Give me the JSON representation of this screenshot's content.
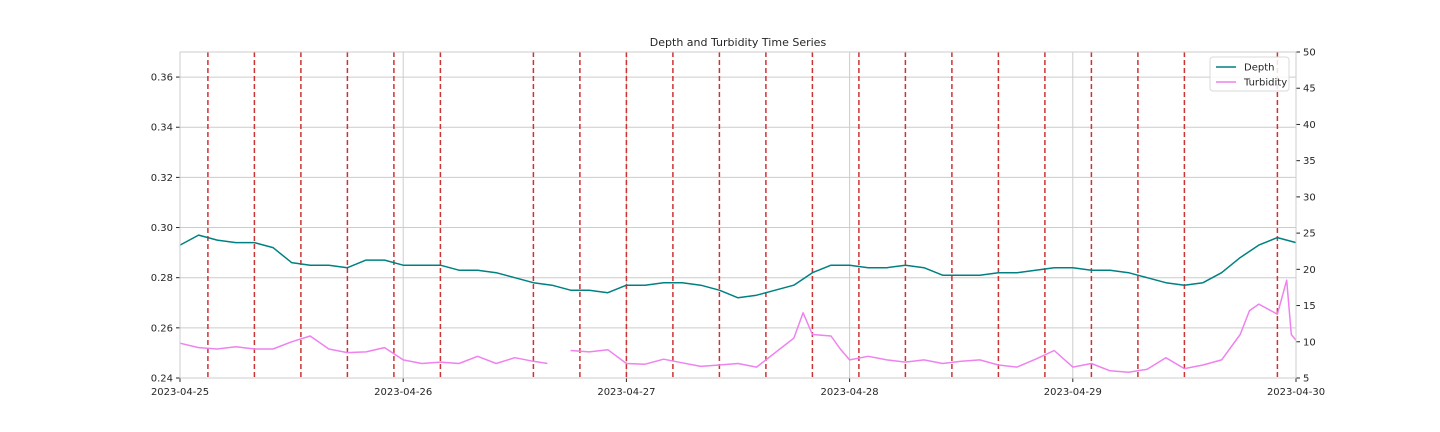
{
  "chart_data": {
    "type": "line",
    "title": "Depth and Turbidity Time Series",
    "xlabel": "",
    "ylabel_left": "",
    "ylabel_right": "",
    "x_range": [
      "2023-04-25",
      "2023-04-30"
    ],
    "x_ticks": [
      "2023-04-25",
      "2023-04-26",
      "2023-04-27",
      "2023-04-28",
      "2023-04-29",
      "2023-04-30"
    ],
    "ylim_left": [
      0.24,
      0.37
    ],
    "y_ticks_left": [
      "0.24",
      "0.26",
      "0.28",
      "0.30",
      "0.32",
      "0.34",
      "0.36"
    ],
    "ylim_right": [
      5,
      50
    ],
    "y_ticks_right": [
      "5",
      "10",
      "15",
      "20",
      "25",
      "30",
      "35",
      "40",
      "45",
      "50"
    ],
    "grid": true,
    "legend_position": "top-right",
    "series": [
      {
        "name": "Depth",
        "axis": "left",
        "color": "#008080",
        "points": [
          [
            "2023-04-25 00:00",
            0.293
          ],
          [
            "2023-04-25 02:00",
            0.297
          ],
          [
            "2023-04-25 04:00",
            0.295
          ],
          [
            "2023-04-25 06:00",
            0.294
          ],
          [
            "2023-04-25 08:00",
            0.294
          ],
          [
            "2023-04-25 10:00",
            0.292
          ],
          [
            "2023-04-25 12:00",
            0.286
          ],
          [
            "2023-04-25 14:00",
            0.285
          ],
          [
            "2023-04-25 16:00",
            0.285
          ],
          [
            "2023-04-25 18:00",
            0.284
          ],
          [
            "2023-04-25 20:00",
            0.287
          ],
          [
            "2023-04-25 22:00",
            0.287
          ],
          [
            "2023-04-26 00:00",
            0.285
          ],
          [
            "2023-04-26 02:00",
            0.285
          ],
          [
            "2023-04-26 04:00",
            0.285
          ],
          [
            "2023-04-26 06:00",
            0.283
          ],
          [
            "2023-04-26 08:00",
            0.283
          ],
          [
            "2023-04-26 10:00",
            0.282
          ],
          [
            "2023-04-26 12:00",
            0.28
          ],
          [
            "2023-04-26 14:00",
            0.278
          ],
          [
            "2023-04-26 16:00",
            0.277
          ],
          [
            "2023-04-26 18:00",
            0.275
          ],
          [
            "2023-04-26 20:00",
            0.275
          ],
          [
            "2023-04-26 22:00",
            0.274
          ],
          [
            "2023-04-27 00:00",
            0.277
          ],
          [
            "2023-04-27 02:00",
            0.277
          ],
          [
            "2023-04-27 04:00",
            0.278
          ],
          [
            "2023-04-27 06:00",
            0.278
          ],
          [
            "2023-04-27 08:00",
            0.277
          ],
          [
            "2023-04-27 10:00",
            0.275
          ],
          [
            "2023-04-27 12:00",
            0.272
          ],
          [
            "2023-04-27 14:00",
            0.273
          ],
          [
            "2023-04-27 16:00",
            0.275
          ],
          [
            "2023-04-27 18:00",
            0.277
          ],
          [
            "2023-04-27 20:00",
            0.282
          ],
          [
            "2023-04-27 22:00",
            0.285
          ],
          [
            "2023-04-28 00:00",
            0.285
          ],
          [
            "2023-04-28 02:00",
            0.284
          ],
          [
            "2023-04-28 04:00",
            0.284
          ],
          [
            "2023-04-28 06:00",
            0.285
          ],
          [
            "2023-04-28 08:00",
            0.284
          ],
          [
            "2023-04-28 10:00",
            0.281
          ],
          [
            "2023-04-28 12:00",
            0.281
          ],
          [
            "2023-04-28 14:00",
            0.281
          ],
          [
            "2023-04-28 16:00",
            0.282
          ],
          [
            "2023-04-28 18:00",
            0.282
          ],
          [
            "2023-04-28 20:00",
            0.283
          ],
          [
            "2023-04-28 22:00",
            0.284
          ],
          [
            "2023-04-29 00:00",
            0.284
          ],
          [
            "2023-04-29 02:00",
            0.283
          ],
          [
            "2023-04-29 04:00",
            0.283
          ],
          [
            "2023-04-29 06:00",
            0.282
          ],
          [
            "2023-04-29 08:00",
            0.28
          ],
          [
            "2023-04-29 10:00",
            0.278
          ],
          [
            "2023-04-29 12:00",
            0.277
          ],
          [
            "2023-04-29 14:00",
            0.278
          ],
          [
            "2023-04-29 16:00",
            0.282
          ],
          [
            "2023-04-29 18:00",
            0.288
          ],
          [
            "2023-04-29 20:00",
            0.293
          ],
          [
            "2023-04-29 22:00",
            0.296
          ],
          [
            "2023-04-30 00:00",
            0.294
          ]
        ]
      },
      {
        "name": "Turbidity",
        "axis": "right",
        "color": "#ee82ee",
        "points": [
          [
            "2023-04-25 00:00",
            9.8
          ],
          [
            "2023-04-25 02:00",
            9.2
          ],
          [
            "2023-04-25 04:00",
            9.0
          ],
          [
            "2023-04-25 06:00",
            9.3
          ],
          [
            "2023-04-25 08:00",
            9.0
          ],
          [
            "2023-04-25 10:00",
            9.0
          ],
          [
            "2023-04-25 12:00",
            10.0
          ],
          [
            "2023-04-25 14:00",
            10.8
          ],
          [
            "2023-04-25 16:00",
            9.0
          ],
          [
            "2023-04-25 18:00",
            8.5
          ],
          [
            "2023-04-25 20:00",
            8.6
          ],
          [
            "2023-04-25 22:00",
            9.2
          ],
          [
            "2023-04-26 00:00",
            7.5
          ],
          [
            "2023-04-26 02:00",
            7.0
          ],
          [
            "2023-04-26 04:00",
            7.2
          ],
          [
            "2023-04-26 06:00",
            7.0
          ],
          [
            "2023-04-26 08:00",
            8.0
          ],
          [
            "2023-04-26 10:00",
            7.0
          ],
          [
            "2023-04-26 12:00",
            7.8
          ],
          [
            "2023-04-26 14:00",
            7.3
          ],
          [
            "2023-04-26 15:30",
            7.0
          ],
          [
            "2023-04-26 16:00",
            null
          ],
          [
            "2023-04-26 18:00",
            8.8
          ],
          [
            "2023-04-26 20:00",
            8.6
          ],
          [
            "2023-04-26 22:00",
            8.9
          ],
          [
            "2023-04-27 00:00",
            7.0
          ],
          [
            "2023-04-27 02:00",
            6.9
          ],
          [
            "2023-04-27 04:00",
            7.6
          ],
          [
            "2023-04-27 06:00",
            7.1
          ],
          [
            "2023-04-27 08:00",
            6.6
          ],
          [
            "2023-04-27 10:00",
            6.8
          ],
          [
            "2023-04-27 12:00",
            7.0
          ],
          [
            "2023-04-27 14:00",
            6.5
          ],
          [
            "2023-04-27 16:00",
            8.5
          ],
          [
            "2023-04-27 18:00",
            10.5
          ],
          [
            "2023-04-27 19:00",
            14.0
          ],
          [
            "2023-04-27 20:00",
            11.0
          ],
          [
            "2023-04-27 22:00",
            10.8
          ],
          [
            "2023-04-27 23:00",
            9.0
          ],
          [
            "2023-04-28 00:00",
            7.5
          ],
          [
            "2023-04-28 02:00",
            8.0
          ],
          [
            "2023-04-28 04:00",
            7.5
          ],
          [
            "2023-04-28 06:00",
            7.2
          ],
          [
            "2023-04-28 08:00",
            7.5
          ],
          [
            "2023-04-28 10:00",
            7.0
          ],
          [
            "2023-04-28 12:00",
            7.3
          ],
          [
            "2023-04-28 14:00",
            7.5
          ],
          [
            "2023-04-28 16:00",
            6.8
          ],
          [
            "2023-04-28 18:00",
            6.5
          ],
          [
            "2023-04-28 20:00",
            7.6
          ],
          [
            "2023-04-28 22:00",
            8.8
          ],
          [
            "2023-04-29 00:00",
            6.5
          ],
          [
            "2023-04-29 02:00",
            7.0
          ],
          [
            "2023-04-29 04:00",
            6.0
          ],
          [
            "2023-04-29 06:00",
            5.8
          ],
          [
            "2023-04-29 08:00",
            6.2
          ],
          [
            "2023-04-29 10:00",
            7.8
          ],
          [
            "2023-04-29 12:00",
            6.3
          ],
          [
            "2023-04-29 14:00",
            6.8
          ],
          [
            "2023-04-29 16:00",
            7.5
          ],
          [
            "2023-04-29 18:00",
            11.0
          ],
          [
            "2023-04-29 19:00",
            14.3
          ],
          [
            "2023-04-29 20:00",
            15.2
          ],
          [
            "2023-04-29 22:00",
            13.8
          ],
          [
            "2023-04-29 23:00",
            18.5
          ],
          [
            "2023-04-29 23:30",
            11.0
          ],
          [
            "2023-04-30 00:00",
            10.2
          ]
        ]
      }
    ],
    "vertical_markers": {
      "color": "#cc3333",
      "style": "dashed",
      "x": [
        "2023-04-25 03:00",
        "2023-04-25 08:00",
        "2023-04-25 13:00",
        "2023-04-25 18:00",
        "2023-04-25 23:00",
        "2023-04-26 04:00",
        "2023-04-26 14:00",
        "2023-04-26 19:00",
        "2023-04-27 00:00",
        "2023-04-27 05:00",
        "2023-04-27 10:00",
        "2023-04-27 15:00",
        "2023-04-27 20:00",
        "2023-04-28 01:00",
        "2023-04-28 06:00",
        "2023-04-28 11:00",
        "2023-04-28 16:00",
        "2023-04-28 21:00",
        "2023-04-29 02:00",
        "2023-04-29 07:00",
        "2023-04-29 12:00",
        "2023-04-29 22:00"
      ]
    }
  }
}
